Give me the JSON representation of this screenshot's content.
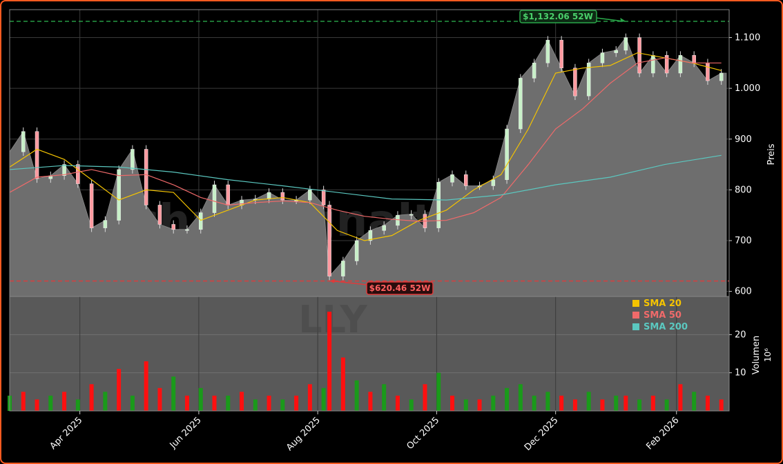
{
  "chart_data": {
    "type": "candlestick",
    "watermark": {
      "line1": "chartsignaltrade",
      "line2": "LLY"
    },
    "x": {
      "tick_labels": [
        "Apr 2025",
        "Jun 2025",
        "Aug 2025",
        "Oct 2025",
        "Dec 2025",
        "Feb 2026"
      ],
      "tick_dates": [
        "2025-04-01",
        "2025-06-01",
        "2025-08-01",
        "2025-10-01",
        "2025-12-01",
        "2026-02-01"
      ],
      "range": [
        "2025-02-24",
        "2026-02-28"
      ]
    },
    "price_axis": {
      "label": "Preis",
      "ylim": [
        590,
        1155
      ],
      "ticks": [
        600,
        700,
        800,
        900,
        1000,
        1100
      ],
      "tick_labels": [
        "600",
        "700",
        "800",
        "900",
        "1.000",
        "1.100"
      ]
    },
    "volume_axis": {
      "label": "Volumen",
      "exponent_label": "10⁶",
      "ylim": [
        0,
        30
      ],
      "ticks": [
        10,
        20
      ],
      "tick_labels": [
        "10",
        "20"
      ]
    },
    "legend": {
      "placement": "volume panel top-right",
      "entries": [
        {
          "label": "SMA 20",
          "color": "#f5c400"
        },
        {
          "label": "SMA 50",
          "color": "#f06a6a"
        },
        {
          "label": "SMA 200",
          "color": "#5bc8c0"
        }
      ]
    },
    "annotations": {
      "high_52w": {
        "label": "$1,132.06 52W",
        "value": 1132.06,
        "date": "2026-01-06",
        "color": "#2aa84a"
      },
      "low_52w": {
        "label": "$620.46 52W",
        "value": 620.46,
        "date": "2025-08-07",
        "color": "#e03a3a"
      }
    },
    "series": [
      {
        "name": "Close",
        "kind": "close",
        "points": [
          [
            "2025-02-24",
            875
          ],
          [
            "2025-03-03",
            915
          ],
          [
            "2025-03-10",
            822
          ],
          [
            "2025-03-17",
            828
          ],
          [
            "2025-03-24",
            850
          ],
          [
            "2025-03-31",
            812
          ],
          [
            "2025-04-07",
            725
          ],
          [
            "2025-04-14",
            740
          ],
          [
            "2025-04-21",
            840
          ],
          [
            "2025-04-28",
            880
          ],
          [
            "2025-05-05",
            770
          ],
          [
            "2025-05-12",
            732
          ],
          [
            "2025-05-19",
            722
          ],
          [
            "2025-05-26",
            722
          ],
          [
            "2025-06-02",
            755
          ],
          [
            "2025-06-09",
            810
          ],
          [
            "2025-06-16",
            770
          ],
          [
            "2025-06-23",
            780
          ],
          [
            "2025-06-30",
            782
          ],
          [
            "2025-07-07",
            795
          ],
          [
            "2025-07-14",
            780
          ],
          [
            "2025-07-21",
            780
          ],
          [
            "2025-07-28",
            800
          ],
          [
            "2025-08-04",
            770
          ],
          [
            "2025-08-07",
            630
          ],
          [
            "2025-08-14",
            660
          ],
          [
            "2025-08-21",
            700
          ],
          [
            "2025-08-28",
            720
          ],
          [
            "2025-09-04",
            730
          ],
          [
            "2025-09-11",
            750
          ],
          [
            "2025-09-18",
            752
          ],
          [
            "2025-09-25",
            725
          ],
          [
            "2025-10-02",
            815
          ],
          [
            "2025-10-09",
            830
          ],
          [
            "2025-10-16",
            808
          ],
          [
            "2025-10-23",
            808
          ],
          [
            "2025-10-30",
            820
          ],
          [
            "2025-11-06",
            920
          ],
          [
            "2025-11-13",
            1020
          ],
          [
            "2025-11-20",
            1050
          ],
          [
            "2025-11-27",
            1095
          ],
          [
            "2025-12-04",
            1040
          ],
          [
            "2025-12-11",
            985
          ],
          [
            "2025-12-18",
            1050
          ],
          [
            "2025-12-25",
            1070
          ],
          [
            "2026-01-01",
            1075
          ],
          [
            "2026-01-06",
            1100
          ],
          [
            "2026-01-13",
            1030
          ],
          [
            "2026-01-20",
            1065
          ],
          [
            "2026-01-27",
            1030
          ],
          [
            "2026-02-03",
            1065
          ],
          [
            "2026-02-10",
            1050
          ],
          [
            "2026-02-17",
            1015
          ],
          [
            "2026-02-24",
            1030
          ]
        ]
      },
      {
        "name": "SMA 20",
        "kind": "sma",
        "color": "#f5c400",
        "points": [
          [
            "2025-02-24",
            845
          ],
          [
            "2025-03-10",
            880
          ],
          [
            "2025-03-24",
            860
          ],
          [
            "2025-04-07",
            820
          ],
          [
            "2025-04-21",
            780
          ],
          [
            "2025-05-05",
            800
          ],
          [
            "2025-05-19",
            795
          ],
          [
            "2025-06-02",
            740
          ],
          [
            "2025-06-16",
            760
          ],
          [
            "2025-06-30",
            780
          ],
          [
            "2025-07-14",
            785
          ],
          [
            "2025-07-28",
            775
          ],
          [
            "2025-08-11",
            720
          ],
          [
            "2025-08-25",
            700
          ],
          [
            "2025-09-08",
            710
          ],
          [
            "2025-09-22",
            740
          ],
          [
            "2025-10-06",
            760
          ],
          [
            "2025-10-20",
            800
          ],
          [
            "2025-11-03",
            830
          ],
          [
            "2025-11-17",
            920
          ],
          [
            "2025-12-01",
            1030
          ],
          [
            "2025-12-15",
            1040
          ],
          [
            "2025-12-29",
            1045
          ],
          [
            "2026-01-12",
            1070
          ],
          [
            "2026-01-26",
            1060
          ],
          [
            "2026-02-09",
            1050
          ],
          [
            "2026-02-24",
            1035
          ]
        ]
      },
      {
        "name": "SMA 50",
        "kind": "sma",
        "color": "#f06a6a",
        "points": [
          [
            "2025-02-24",
            795
          ],
          [
            "2025-03-10",
            825
          ],
          [
            "2025-03-24",
            830
          ],
          [
            "2025-04-07",
            840
          ],
          [
            "2025-04-21",
            828
          ],
          [
            "2025-05-05",
            830
          ],
          [
            "2025-05-19",
            810
          ],
          [
            "2025-06-02",
            785
          ],
          [
            "2025-06-16",
            770
          ],
          [
            "2025-06-30",
            775
          ],
          [
            "2025-07-14",
            778
          ],
          [
            "2025-07-28",
            775
          ],
          [
            "2025-08-11",
            760
          ],
          [
            "2025-08-25",
            748
          ],
          [
            "2025-09-08",
            742
          ],
          [
            "2025-09-22",
            738
          ],
          [
            "2025-10-06",
            740
          ],
          [
            "2025-10-20",
            755
          ],
          [
            "2025-11-03",
            785
          ],
          [
            "2025-11-17",
            850
          ],
          [
            "2025-12-01",
            920
          ],
          [
            "2025-12-15",
            960
          ],
          [
            "2025-12-29",
            1010
          ],
          [
            "2026-01-12",
            1050
          ],
          [
            "2026-01-26",
            1060
          ],
          [
            "2026-02-09",
            1050
          ],
          [
            "2026-02-24",
            1050
          ]
        ]
      },
      {
        "name": "SMA 200",
        "kind": "sma",
        "color": "#5bc8c0",
        "points": [
          [
            "2025-02-24",
            840
          ],
          [
            "2025-03-24",
            848
          ],
          [
            "2025-04-21",
            845
          ],
          [
            "2025-05-19",
            835
          ],
          [
            "2025-06-16",
            820
          ],
          [
            "2025-07-14",
            808
          ],
          [
            "2025-08-11",
            795
          ],
          [
            "2025-09-08",
            782
          ],
          [
            "2025-10-06",
            780
          ],
          [
            "2025-11-03",
            790
          ],
          [
            "2025-12-01",
            810
          ],
          [
            "2025-12-29",
            825
          ],
          [
            "2026-01-26",
            850
          ],
          [
            "2026-02-24",
            868
          ]
        ]
      },
      {
        "name": "Volume",
        "kind": "volume",
        "unit": "millions",
        "points": [
          [
            "2025-02-24",
            4,
            "up"
          ],
          [
            "2025-03-03",
            5,
            "down"
          ],
          [
            "2025-03-10",
            3,
            "down"
          ],
          [
            "2025-03-17",
            4,
            "up"
          ],
          [
            "2025-03-24",
            5,
            "down"
          ],
          [
            "2025-03-31",
            3,
            "up"
          ],
          [
            "2025-04-07",
            7,
            "down"
          ],
          [
            "2025-04-14",
            5,
            "up"
          ],
          [
            "2025-04-21",
            11,
            "down"
          ],
          [
            "2025-04-28",
            4,
            "up"
          ],
          [
            "2025-05-05",
            13,
            "down"
          ],
          [
            "2025-05-12",
            6,
            "down"
          ],
          [
            "2025-05-19",
            9,
            "up"
          ],
          [
            "2025-05-26",
            4,
            "down"
          ],
          [
            "2025-06-02",
            6,
            "up"
          ],
          [
            "2025-06-09",
            4,
            "down"
          ],
          [
            "2025-06-16",
            4,
            "up"
          ],
          [
            "2025-06-23",
            5,
            "down"
          ],
          [
            "2025-06-30",
            3,
            "up"
          ],
          [
            "2025-07-07",
            4,
            "down"
          ],
          [
            "2025-07-14",
            3,
            "up"
          ],
          [
            "2025-07-21",
            4,
            "down"
          ],
          [
            "2025-07-28",
            7,
            "down"
          ],
          [
            "2025-08-04",
            6,
            "up"
          ],
          [
            "2025-08-07",
            26,
            "down"
          ],
          [
            "2025-08-14",
            14,
            "down"
          ],
          [
            "2025-08-21",
            8,
            "up"
          ],
          [
            "2025-08-28",
            5,
            "down"
          ],
          [
            "2025-09-04",
            7,
            "up"
          ],
          [
            "2025-09-11",
            4,
            "down"
          ],
          [
            "2025-09-18",
            3,
            "up"
          ],
          [
            "2025-09-25",
            7,
            "down"
          ],
          [
            "2025-10-02",
            10,
            "up"
          ],
          [
            "2025-10-09",
            4,
            "down"
          ],
          [
            "2025-10-16",
            3,
            "up"
          ],
          [
            "2025-10-23",
            3,
            "down"
          ],
          [
            "2025-10-30",
            4,
            "up"
          ],
          [
            "2025-11-06",
            6,
            "up"
          ],
          [
            "2025-11-13",
            7,
            "up"
          ],
          [
            "2025-11-20",
            4,
            "up"
          ],
          [
            "2025-11-27",
            5,
            "up"
          ],
          [
            "2025-12-04",
            4,
            "down"
          ],
          [
            "2025-12-11",
            3,
            "down"
          ],
          [
            "2025-12-18",
            5,
            "up"
          ],
          [
            "2025-12-25",
            3,
            "down"
          ],
          [
            "2026-01-01",
            4,
            "up"
          ],
          [
            "2026-01-06",
            4,
            "down"
          ],
          [
            "2026-01-13",
            3,
            "up"
          ],
          [
            "2026-01-20",
            4,
            "down"
          ],
          [
            "2026-01-27",
            3,
            "up"
          ],
          [
            "2026-02-03",
            7,
            "down"
          ],
          [
            "2026-02-10",
            5,
            "up"
          ],
          [
            "2026-02-17",
            4,
            "down"
          ],
          [
            "2026-02-24",
            3,
            "down"
          ]
        ]
      }
    ],
    "grid": true
  }
}
